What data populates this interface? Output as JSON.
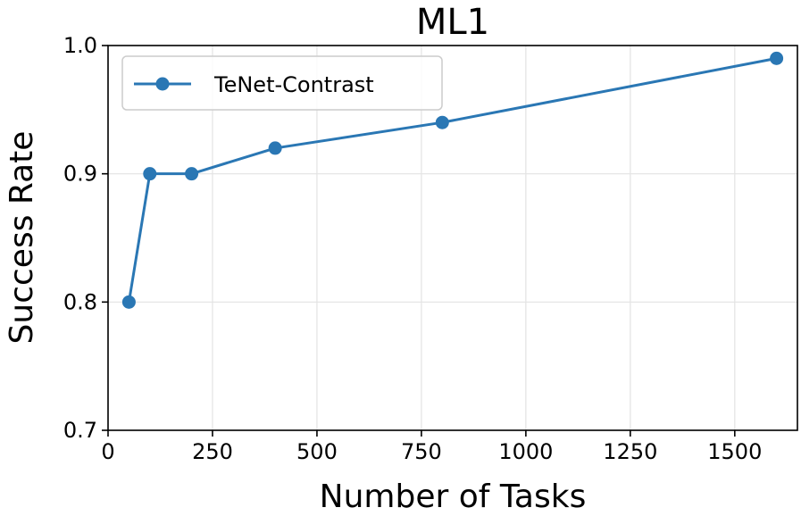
{
  "chart_data": {
    "type": "line",
    "title": "ML1",
    "xlabel": "Number of Tasks",
    "ylabel": "Success Rate",
    "xlim": [
      0,
      1650
    ],
    "ylim": [
      0.7,
      1.0
    ],
    "xticks": [
      0,
      250,
      500,
      750,
      1000,
      1250,
      1500
    ],
    "yticks": [
      0.7,
      0.8,
      0.9,
      1.0
    ],
    "xtick_labels": [
      "0",
      "250",
      "500",
      "750",
      "1000",
      "1250",
      "1500"
    ],
    "ytick_labels": [
      "0.7",
      "0.8",
      "0.9",
      "1.0"
    ],
    "grid": true,
    "legend_position": "upper-left",
    "series": [
      {
        "name": "TeNet-Contrast",
        "color": "#2a77b4",
        "marker": "circle",
        "x": [
          50,
          100,
          200,
          400,
          800,
          1600
        ],
        "y": [
          0.8,
          0.9,
          0.9,
          0.92,
          0.94,
          0.99
        ]
      }
    ]
  }
}
